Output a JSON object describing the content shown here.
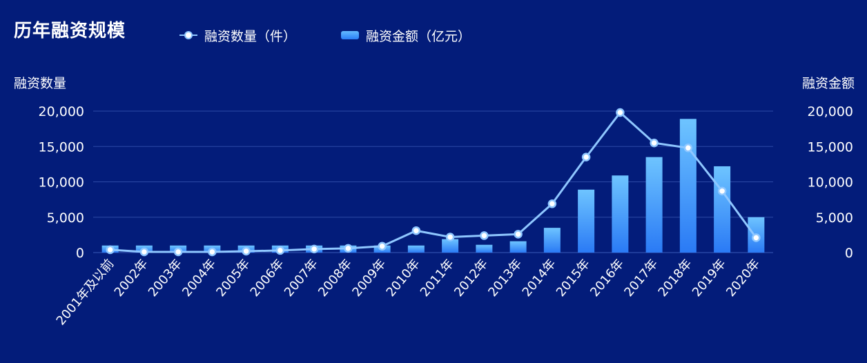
{
  "chart_data": {
    "type": "bar+line",
    "title": "历年融资规模",
    "legend": [
      {
        "name": "融资数量（件）",
        "kind": "line",
        "color": "#8fc7ff"
      },
      {
        "name": "融资金额（亿元）",
        "kind": "bar",
        "color": "#3b8dfa"
      }
    ],
    "y_left_label": "融资数量",
    "y_right_label": "融资金额",
    "y_left_ticks": [
      "0",
      "5,000",
      "10,000",
      "15,000",
      "20,000"
    ],
    "y_right_ticks": [
      "0",
      "5,000",
      "10,000",
      "15,000",
      "20,000"
    ],
    "ylim": [
      0,
      20000
    ],
    "categories": [
      "2001年及以前",
      "2002年",
      "2003年",
      "2004年",
      "2005年",
      "2006年",
      "2007年",
      "2008年",
      "2009年",
      "2010年",
      "2011年",
      "2012年",
      "2013年",
      "2014年",
      "2015年",
      "2016年",
      "2017年",
      "2018年",
      "2019年",
      "2020年"
    ],
    "series": [
      {
        "name": "融资金额（亿元）",
        "type": "bar",
        "axis": "right",
        "values": [
          1000,
          1000,
          1000,
          1000,
          1000,
          1000,
          1000,
          1000,
          1000,
          1000,
          1900,
          1100,
          1600,
          3500,
          8900,
          10900,
          13500,
          18900,
          12200,
          5000
        ]
      },
      {
        "name": "融资数量（件）",
        "type": "line",
        "axis": "left",
        "values": [
          400,
          100,
          100,
          100,
          200,
          300,
          500,
          600,
          900,
          3100,
          2200,
          2400,
          2600,
          6900,
          13500,
          19800,
          15500,
          14800,
          8700,
          2100
        ]
      }
    ]
  }
}
